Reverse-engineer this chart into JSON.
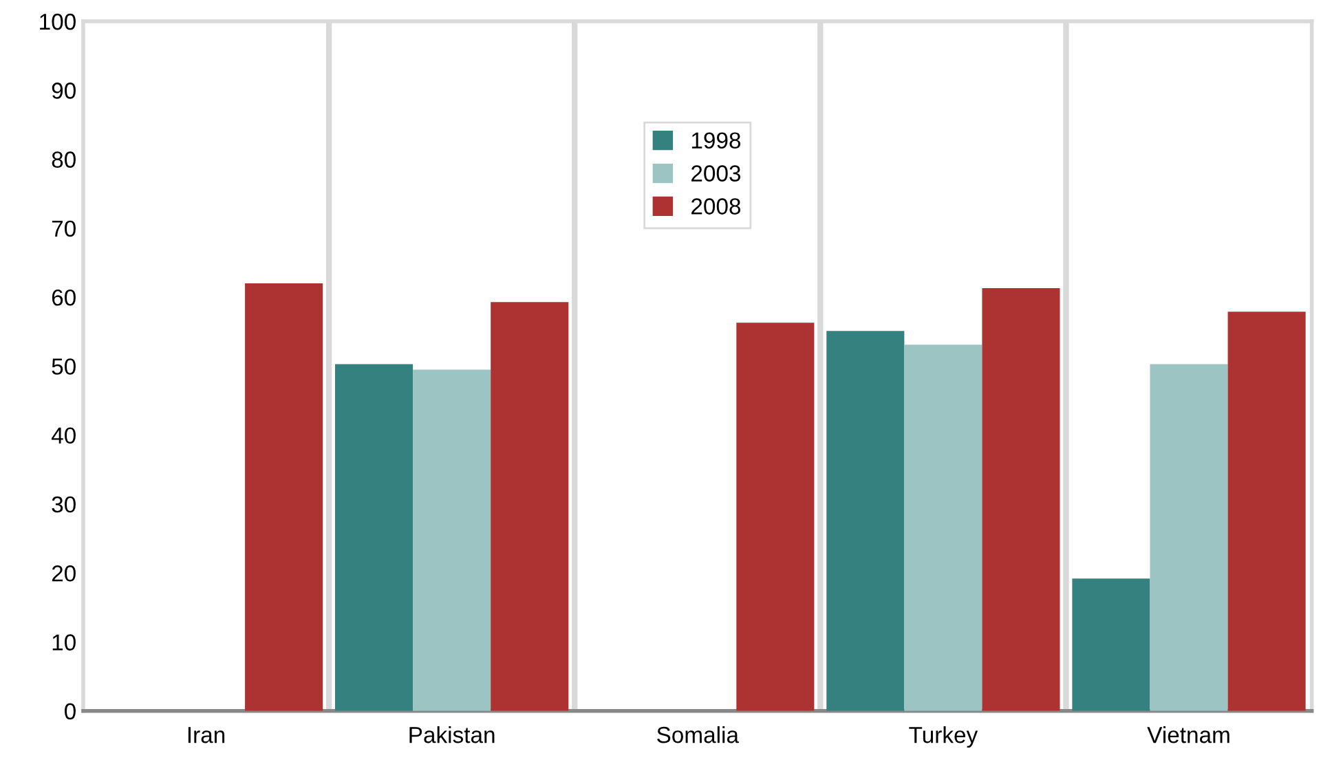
{
  "chart_data": {
    "type": "bar",
    "categories": [
      "Iran",
      "Pakistan",
      "Somalia",
      "Turkey",
      "Vietnam"
    ],
    "series": [
      {
        "name": "1998",
        "color": "#34817f",
        "values": [
          null,
          50.3,
          null,
          55.1,
          19.2
        ]
      },
      {
        "name": "2003",
        "color": "#9bc4c3",
        "values": [
          null,
          49.5,
          null,
          53.1,
          50.3
        ]
      },
      {
        "name": "2008",
        "color": "#ad3232",
        "values": [
          62,
          59.3,
          56.3,
          61.3,
          57.9
        ]
      }
    ],
    "ylim": [
      0,
      100
    ],
    "yticks": [
      0,
      10,
      20,
      30,
      40,
      50,
      60,
      70,
      80,
      90,
      100
    ],
    "grid": "x",
    "legend": "top"
  }
}
